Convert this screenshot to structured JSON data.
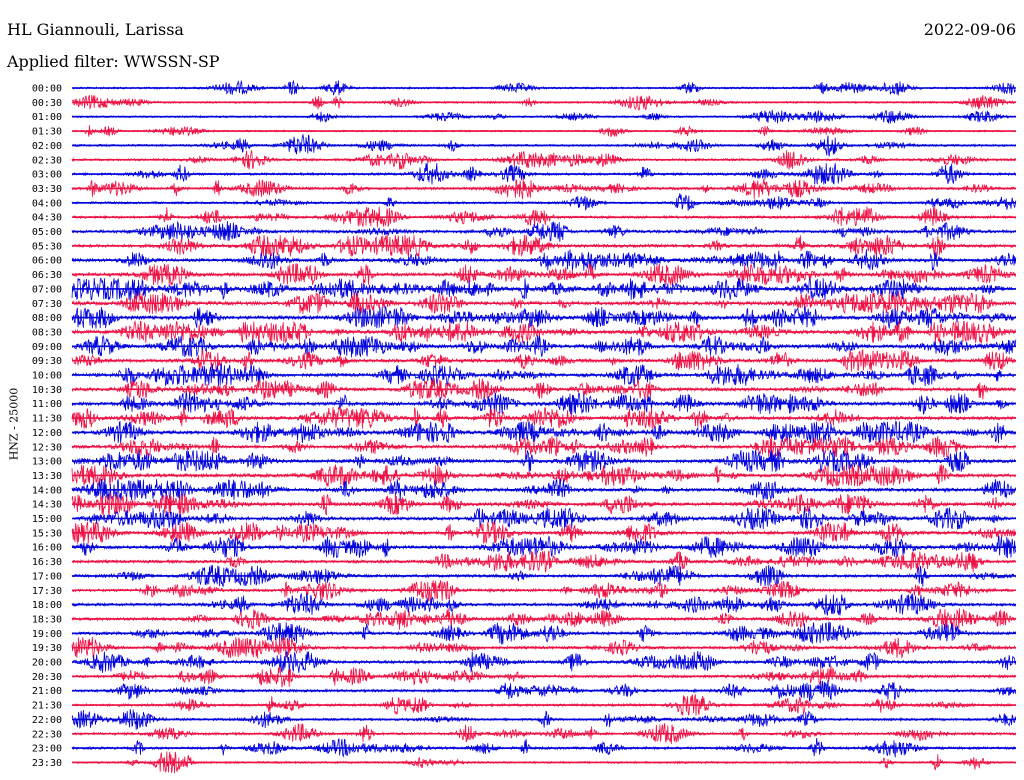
{
  "header": {
    "station": "HL Giannouli, Larissa",
    "date": "2022-09-06",
    "filter": "Applied filter: WWSSN-SP"
  },
  "channel_label": "HNZ - 25000",
  "chart_data": {
    "type": "line",
    "title": "HL Giannouli, Larissa",
    "subtitle": "Applied filter: WWSSN-SP",
    "ylabel": "HNZ - 25000",
    "row_labels": [
      "00:00",
      "00:30",
      "01:00",
      "01:30",
      "02:00",
      "02:30",
      "03:00",
      "03:30",
      "04:00",
      "04:30",
      "05:00",
      "05:30",
      "06:00",
      "06:30",
      "07:00",
      "07:30",
      "08:00",
      "08:30",
      "09:00",
      "09:30",
      "10:00",
      "10:30",
      "11:00",
      "11:30",
      "12:00",
      "12:30",
      "13:00",
      "13:30",
      "14:00",
      "14:30",
      "15:00",
      "15:30",
      "16:00",
      "16:30",
      "17:00",
      "17:30",
      "18:00",
      "18:30",
      "19:00",
      "19:30",
      "20:00",
      "20:30",
      "21:00",
      "21:30",
      "22:00",
      "22:30",
      "23:00",
      "23:30"
    ],
    "row_colors": [
      "#0000dd",
      "#ee1144"
    ],
    "trace_activity": [
      0.25,
      0.2,
      0.2,
      0.15,
      0.3,
      0.35,
      0.4,
      0.45,
      0.3,
      0.45,
      0.55,
      0.6,
      0.6,
      0.7,
      0.75,
      0.8,
      0.8,
      0.8,
      0.75,
      0.7,
      0.7,
      0.7,
      0.75,
      0.7,
      0.7,
      0.65,
      0.7,
      0.75,
      0.7,
      0.7,
      0.7,
      0.7,
      0.65,
      0.55,
      0.55,
      0.5,
      0.55,
      0.55,
      0.6,
      0.5,
      0.55,
      0.5,
      0.45,
      0.4,
      0.35,
      0.4,
      0.4,
      0.25
    ]
  }
}
